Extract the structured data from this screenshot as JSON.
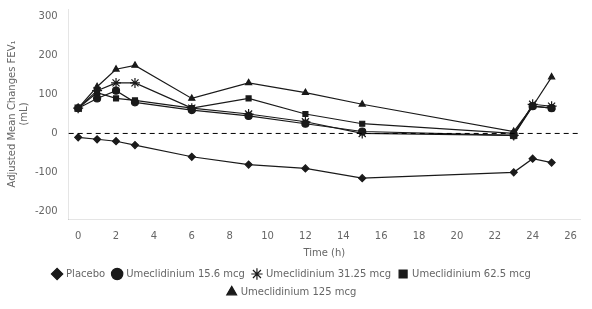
{
  "chart_data": {
    "type": "line",
    "xlabel": "Time (h)",
    "ylabel": "Adjusted Mean Changes FEV₁\n(mL)",
    "xlim": [
      -0.5,
      26.5
    ],
    "ylim": [
      -220,
      320
    ],
    "xticks": [
      0,
      2,
      4,
      6,
      8,
      10,
      12,
      14,
      16,
      18,
      20,
      22,
      24,
      26
    ],
    "yticks": [
      -200,
      -100,
      0,
      100,
      200,
      300
    ],
    "x": [
      0,
      1,
      2,
      3,
      6,
      9,
      12,
      15,
      23,
      24,
      25
    ],
    "series": [
      {
        "name": "Placebo",
        "color": "#1a1a1a",
        "marker": "diamond",
        "values": [
          -10,
          -15,
          -20,
          -30,
          -60,
          -80,
          -90,
          -115,
          -100,
          -65,
          -75
        ]
      },
      {
        "name": "Umeclidinium 15.6 mcg",
        "color": "#1a1a1a",
        "marker": "circle",
        "values": [
          65,
          90,
          110,
          80,
          60,
          45,
          25,
          5,
          -5,
          70,
          65
        ]
      },
      {
        "name": "Umeclidinium 31.25 mcg",
        "color": "#1a1a1a",
        "marker": "star",
        "values": [
          65,
          110,
          130,
          130,
          65,
          50,
          30,
          0,
          -5,
          75,
          70
        ]
      },
      {
        "name": "Umeclidinium 62.5 mcg",
        "color": "#1a1a1a",
        "marker": "square",
        "values": [
          65,
          105,
          90,
          85,
          65,
          90,
          50,
          25,
          0,
          70,
          65
        ]
      },
      {
        "name": "Umeclidinium 125 mcg",
        "color": "#1a1a1a",
        "marker": "triangle",
        "values": [
          65,
          120,
          165,
          175,
          90,
          130,
          105,
          75,
          5,
          70,
          145
        ]
      }
    ],
    "reference_lines": [
      {
        "value": 0,
        "line_style": "dashed",
        "color": "#000000"
      }
    ],
    "legend": "bottom",
    "grid": false
  }
}
